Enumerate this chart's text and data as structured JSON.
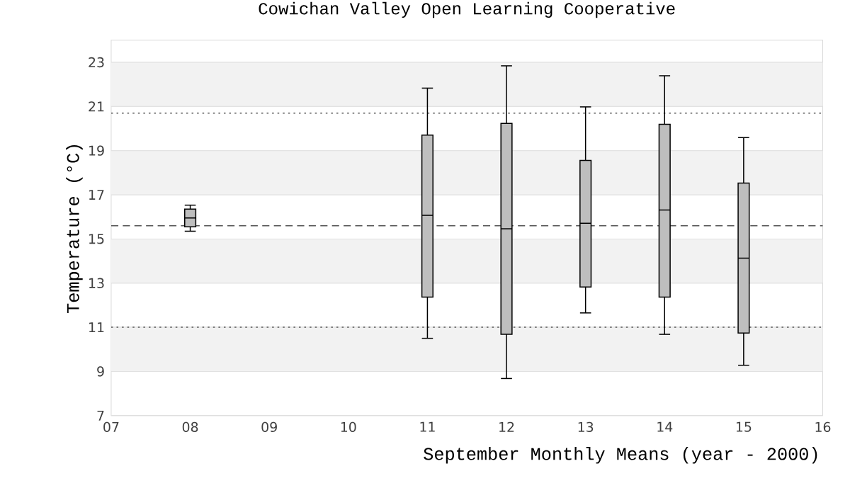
{
  "chart_data": {
    "type": "box",
    "title": "Cowichan Valley Open Learning Cooperative",
    "xlabel": "September Monthly Means (year - 2000)",
    "ylabel": "Temperature (°C)",
    "x": [
      8,
      11,
      12,
      13,
      14,
      15
    ],
    "boxes": [
      {
        "low": 15.35,
        "q1": 15.55,
        "median": 15.95,
        "q3": 16.35,
        "high": 16.53
      },
      {
        "low": 10.5,
        "q1": 12.37,
        "median": 16.07,
        "q3": 19.7,
        "high": 21.83
      },
      {
        "low": 8.68,
        "q1": 10.68,
        "median": 15.46,
        "q3": 20.23,
        "high": 22.84
      },
      {
        "low": 11.65,
        "q1": 12.82,
        "median": 15.71,
        "q3": 18.56,
        "high": 20.98
      },
      {
        "low": 10.68,
        "q1": 12.37,
        "median": 16.31,
        "q3": 20.19,
        "high": 22.39
      },
      {
        "low": 9.28,
        "q1": 10.74,
        "median": 14.13,
        "q3": 17.53,
        "high": 19.59
      }
    ],
    "color": "#bebebe",
    "xlim": [
      7,
      16
    ],
    "ylim": [
      7,
      24
    ],
    "xticks": [
      {
        "value": 7,
        "label": "07"
      },
      {
        "value": 8,
        "label": "08"
      },
      {
        "value": 9,
        "label": "09"
      },
      {
        "value": 10,
        "label": "10"
      },
      {
        "value": 11,
        "label": "11"
      },
      {
        "value": 12,
        "label": "12"
      },
      {
        "value": 13,
        "label": "13"
      },
      {
        "value": 14,
        "label": "14"
      },
      {
        "value": 15,
        "label": "15"
      },
      {
        "value": 16,
        "label": "16"
      }
    ],
    "yticks": [
      7,
      9,
      11,
      13,
      15,
      17,
      19,
      21,
      23
    ],
    "grid": "y",
    "bands": [
      {
        "axis": "y",
        "from": 9,
        "to": 11,
        "color": "#f2f2f2"
      },
      {
        "axis": "y",
        "from": 13,
        "to": 15,
        "color": "#f2f2f2"
      },
      {
        "axis": "y",
        "from": 17,
        "to": 19,
        "color": "#f2f2f2"
      },
      {
        "axis": "y",
        "from": 21,
        "to": 23,
        "color": "#f2f2f2"
      }
    ],
    "ref_lines": [
      {
        "axis": "y",
        "value": 15.6,
        "line_style": "dashed",
        "color": "#555555"
      },
      {
        "axis": "y",
        "value": 20.7,
        "line_style": "dotted",
        "color": "#555555"
      },
      {
        "axis": "y",
        "value": 11.0,
        "line_style": "dotted",
        "color": "#555555"
      }
    ]
  }
}
